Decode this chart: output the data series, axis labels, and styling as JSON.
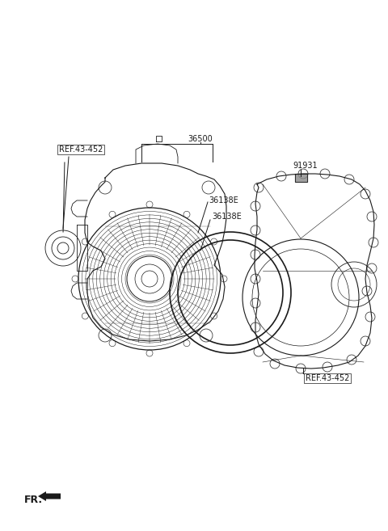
{
  "bg_color": "#ffffff",
  "line_color": "#1a1a1a",
  "fig_width": 4.8,
  "fig_height": 6.57,
  "dpi": 100,
  "labels": {
    "ref_452_left": "REF.43-452",
    "part_36500": "36500",
    "part_36138E_1": "36138E",
    "part_36138E_2": "36138E",
    "part_91931": "91931",
    "ref_452_right": "REF.43-452",
    "fr_label": "FR."
  }
}
